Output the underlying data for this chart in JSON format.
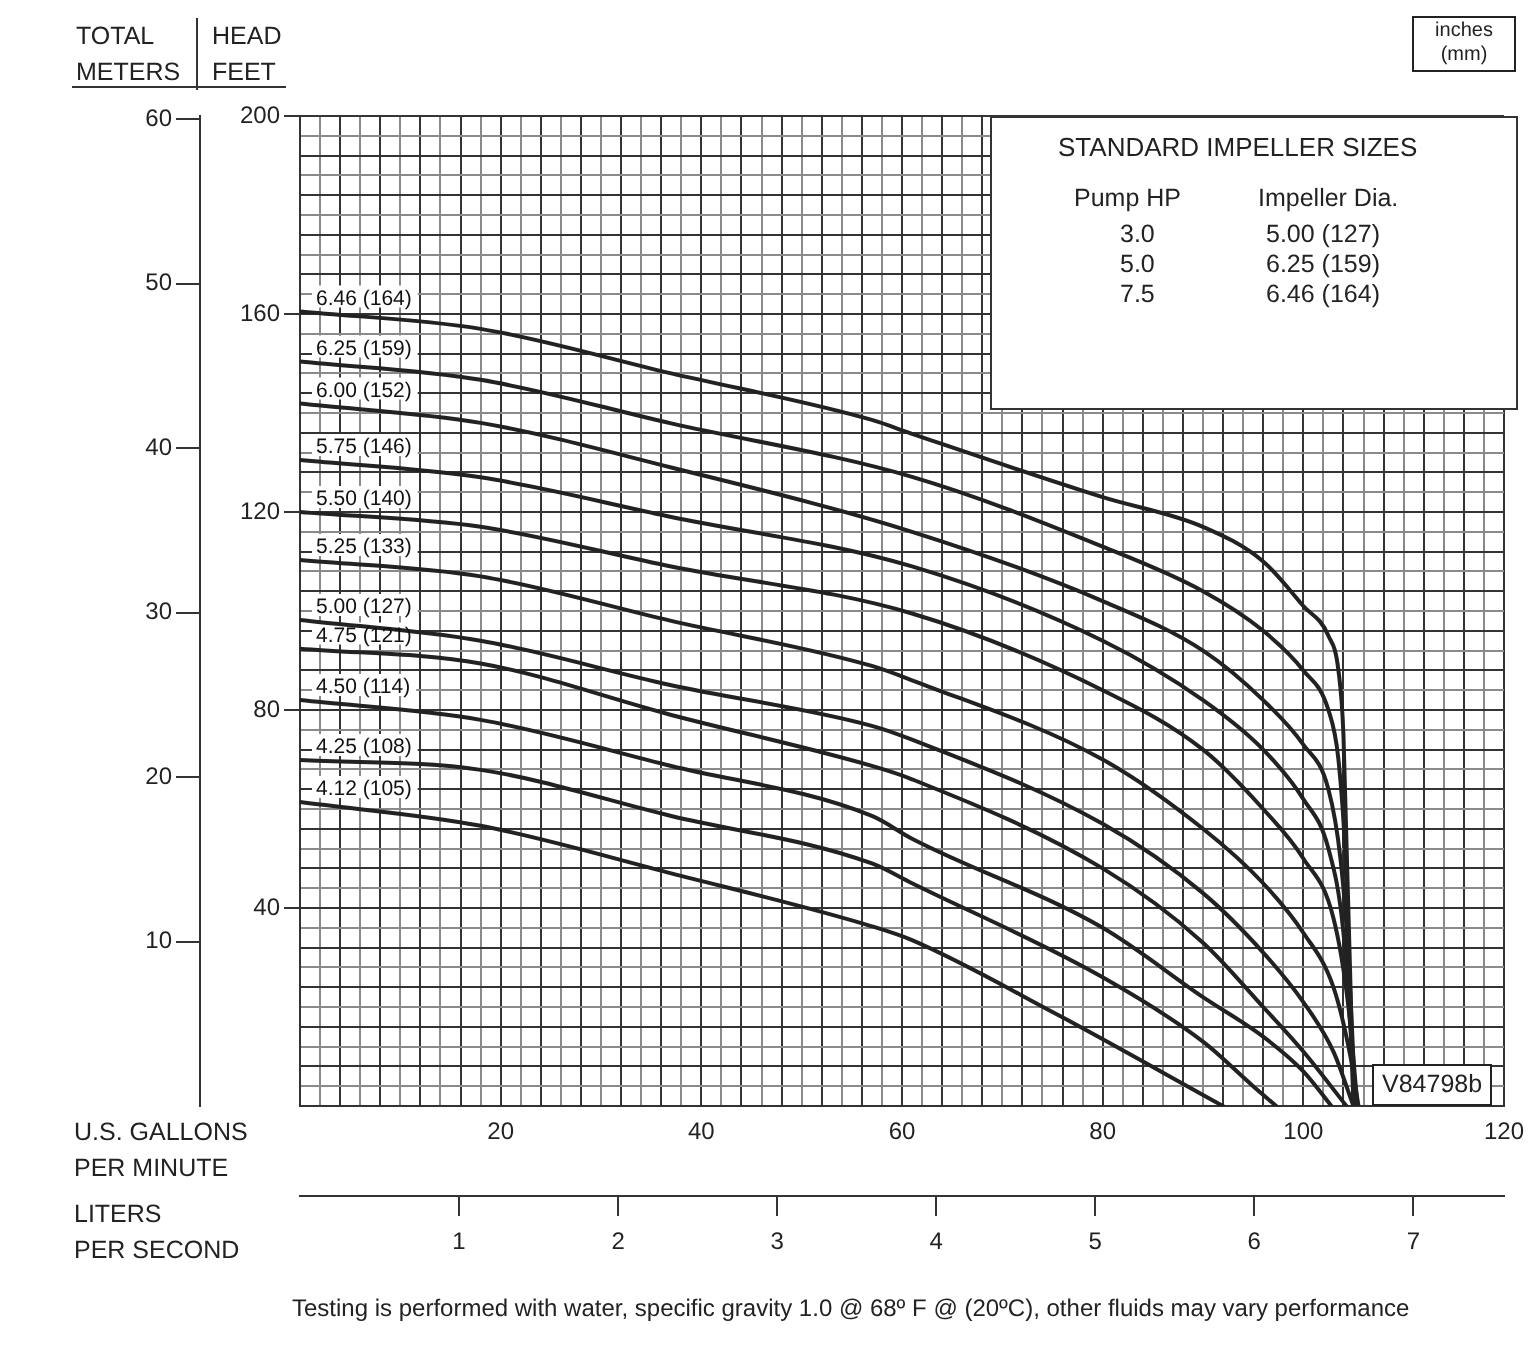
{
  "chart_data": {
    "type": "line",
    "xlabel": "U.S. GALLONS PER MINUTE",
    "ylabel": "HEAD FEET",
    "y2label": "TOTAL METERS",
    "x2label": "LITERS PER SECOND",
    "marker": "none",
    "line_style": "solid",
    "grid": true,
    "xlim": [
      0,
      120
    ],
    "ylim": [
      0,
      200
    ],
    "y2lim": [
      0,
      60.2
    ],
    "x2lim": [
      0,
      7.57
    ],
    "xticks": [
      {
        "value": 0,
        "label": null
      },
      {
        "value": 2,
        "label": null
      },
      {
        "value": 4,
        "label": null
      },
      {
        "value": 6,
        "label": null
      },
      {
        "value": 8,
        "label": null
      },
      {
        "value": 10,
        "label": null
      },
      {
        "value": 12,
        "label": null
      },
      {
        "value": 14,
        "label": null
      },
      {
        "value": 16,
        "label": null
      },
      {
        "value": 18,
        "label": null
      },
      20,
      {
        "value": 22,
        "label": null
      },
      {
        "value": 24,
        "label": null
      },
      {
        "value": 26,
        "label": null
      },
      {
        "value": 28,
        "label": null
      },
      {
        "value": 30,
        "label": null
      },
      {
        "value": 32,
        "label": null
      },
      {
        "value": 34,
        "label": null
      },
      {
        "value": 36,
        "label": null
      },
      {
        "value": 38,
        "label": null
      },
      40,
      {
        "value": 42,
        "label": null
      },
      {
        "value": 44,
        "label": null
      },
      {
        "value": 46,
        "label": null
      },
      {
        "value": 48,
        "label": null
      },
      {
        "value": 50,
        "label": null
      },
      {
        "value": 52,
        "label": null
      },
      {
        "value": 54,
        "label": null
      },
      {
        "value": 56,
        "label": null
      },
      {
        "value": 58,
        "label": null
      },
      60,
      {
        "value": 62,
        "label": null
      },
      {
        "value": 64,
        "label": null
      },
      {
        "value": 66,
        "label": null
      },
      {
        "value": 68,
        "label": null
      },
      {
        "value": 70,
        "label": null
      },
      {
        "value": 72,
        "label": null
      },
      {
        "value": 74,
        "label": null
      },
      {
        "value": 76,
        "label": null
      },
      {
        "value": 78,
        "label": null
      },
      80,
      {
        "value": 82,
        "label": null
      },
      {
        "value": 84,
        "label": null
      },
      {
        "value": 86,
        "label": null
      },
      {
        "value": 88,
        "label": null
      },
      {
        "value": 90,
        "label": null
      },
      {
        "value": 92,
        "label": null
      },
      {
        "value": 94,
        "label": null
      },
      {
        "value": 96,
        "label": null
      },
      {
        "value": 98,
        "label": null
      },
      100,
      {
        "value": 102,
        "label": null
      },
      {
        "value": 104,
        "label": null
      },
      {
        "value": 106,
        "label": null
      },
      {
        "value": 108,
        "label": null
      },
      {
        "value": 110,
        "label": null
      },
      {
        "value": 112,
        "label": null
      },
      {
        "value": 114,
        "label": null
      },
      {
        "value": 116,
        "label": null
      },
      {
        "value": 118,
        "label": null
      },
      120
    ],
    "yticks": [
      {
        "value": 0,
        "label": null
      },
      {
        "value": 4,
        "label": null
      },
      {
        "value": 8,
        "label": null
      },
      {
        "value": 12,
        "label": null
      },
      {
        "value": 16,
        "label": null
      },
      {
        "value": 20,
        "label": null
      },
      {
        "value": 24,
        "label": null
      },
      {
        "value": 28,
        "label": null
      },
      {
        "value": 32,
        "label": null
      },
      {
        "value": 36,
        "label": null
      },
      40,
      {
        "value": 44,
        "label": null
      },
      {
        "value": 48,
        "label": null
      },
      {
        "value": 52,
        "label": null
      },
      {
        "value": 56,
        "label": null
      },
      {
        "value": 60,
        "label": null
      },
      {
        "value": 64,
        "label": null
      },
      {
        "value": 68,
        "label": null
      },
      {
        "value": 72,
        "label": null
      },
      {
        "value": 76,
        "label": null
      },
      80,
      {
        "value": 84,
        "label": null
      },
      {
        "value": 88,
        "label": null
      },
      {
        "value": 92,
        "label": null
      },
      {
        "value": 96,
        "label": null
      },
      {
        "value": 100,
        "label": null
      },
      {
        "value": 104,
        "label": null
      },
      {
        "value": 108,
        "label": null
      },
      {
        "value": 112,
        "label": null
      },
      {
        "value": 116,
        "label": null
      },
      120,
      {
        "value": 124,
        "label": null
      },
      {
        "value": 128,
        "label": null
      },
      {
        "value": 132,
        "label": null
      },
      {
        "value": 136,
        "label": null
      },
      {
        "value": 140,
        "label": null
      },
      {
        "value": 144,
        "label": null
      },
      {
        "value": 148,
        "label": null
      },
      {
        "value": 152,
        "label": null
      },
      {
        "value": 156,
        "label": null
      },
      160,
      {
        "value": 164,
        "label": null
      },
      {
        "value": 168,
        "label": null
      },
      {
        "value": 172,
        "label": null
      },
      {
        "value": 176,
        "label": null
      },
      {
        "value": 180,
        "label": null
      },
      {
        "value": 184,
        "label": null
      },
      {
        "value": 188,
        "label": null
      },
      {
        "value": 192,
        "label": null
      },
      {
        "value": 196,
        "label": null
      },
      200
    ],
    "y2ticks": [
      10,
      20,
      30,
      40,
      50,
      60
    ],
    "x2ticks": [
      1,
      2,
      3,
      4,
      5,
      6,
      7
    ],
    "series": [
      {
        "name": "6.46 (164)",
        "color": "#222222",
        "x": [
          0,
          18,
          37,
          57,
          61,
          80,
          90,
          96,
          100,
          102.5,
          103.5,
          104,
          105
        ],
        "values": [
          160.5,
          157,
          148,
          138.6,
          135.8,
          123,
          117,
          110,
          101,
          95,
          88,
          75,
          0
        ]
      },
      {
        "name": "6.25 (159)",
        "color": "#222222",
        "x": [
          0,
          18,
          37,
          61,
          80,
          90,
          96,
          100,
          102.5,
          103.5,
          104.2,
          105
        ],
        "values": [
          150.4,
          146.7,
          137.9,
          127.1,
          113,
          104,
          96,
          88,
          80,
          70,
          50,
          0
        ]
      },
      {
        "name": "6.00 (152)",
        "color": "#222222",
        "x": [
          0,
          18,
          37,
          61,
          80,
          90,
          96,
          100,
          102.5,
          103.7,
          104.5,
          105.2
        ],
        "values": [
          141.9,
          138,
          129,
          116,
          102,
          92,
          82,
          73,
          64,
          50,
          30,
          0
        ]
      },
      {
        "name": "5.75 (146)",
        "color": "#222222",
        "x": [
          0,
          18,
          37,
          61,
          80,
          90,
          96,
          100,
          102.5,
          104,
          105.2
        ],
        "values": [
          130.5,
          127,
          119,
          109,
          94,
          82,
          72,
          62,
          52,
          35,
          0
        ]
      },
      {
        "name": "5.50 (140)",
        "color": "#222222",
        "x": [
          0,
          18,
          37,
          61,
          80,
          90,
          96,
          100,
          103,
          104.5,
          105.4
        ],
        "values": [
          120,
          117,
          109,
          99.5,
          84,
          72,
          60,
          50,
          38,
          20,
          0
        ]
      },
      {
        "name": "5.25 (133)",
        "color": "#222222",
        "x": [
          0,
          18,
          37,
          57,
          61,
          80,
          90,
          96,
          100,
          103,
          104.7,
          105.5
        ],
        "values": [
          110.3,
          107,
          98,
          88.9,
          86,
          70,
          56,
          45,
          35,
          24,
          10,
          0
        ]
      },
      {
        "name": "5.00 (127)",
        "color": "#222222",
        "x": [
          0,
          18,
          37,
          57,
          61,
          80,
          90,
          96,
          100,
          103,
          105
        ],
        "values": [
          98.2,
          94,
          85,
          76.8,
          74,
          57,
          43,
          31,
          21,
          11,
          0
        ]
      },
      {
        "name": "4.75 (121)",
        "color": "#222222",
        "x": [
          0,
          18,
          37,
          57,
          61,
          80,
          90,
          96,
          100,
          104.3
        ],
        "values": [
          92.4,
          89.4,
          79,
          68.7,
          66,
          48,
          33,
          20,
          11,
          0
        ]
      },
      {
        "name": "4.50 (114)",
        "color": "#222222",
        "x": [
          0,
          18,
          37,
          57,
          61,
          80,
          90,
          96,
          100,
          102.8
        ],
        "values": [
          82,
          78,
          68.7,
          58.6,
          54,
          36,
          22,
          14,
          7,
          0
        ]
      },
      {
        "name": "4.25 (108)",
        "color": "#222222",
        "x": [
          0,
          18,
          37,
          57,
          61,
          80,
          90,
          95,
          97.3
        ],
        "values": [
          69.9,
          67.9,
          58.6,
          49,
          45,
          26,
          13,
          4,
          0
        ]
      },
      {
        "name": "4.12 (105)",
        "color": "#222222",
        "x": [
          0,
          18,
          37,
          57,
          61,
          75,
          92
        ],
        "values": [
          61.4,
          56.6,
          47,
          36.3,
          33.5,
          19,
          0
        ]
      }
    ],
    "annotations": [
      "STANDARD IMPELLER SIZES",
      "Pump HP",
      "Impeller Dia.",
      "3.0",
      "5.00 (127)",
      "5.0",
      "6.25 (159)",
      "7.5",
      "6.46 (164)",
      "inches (mm)",
      "V84798b",
      "Testing is performed with water, specific gravity 1.0 @ 68º F @ (20ºC), other fluids may vary performance"
    ]
  }
}
